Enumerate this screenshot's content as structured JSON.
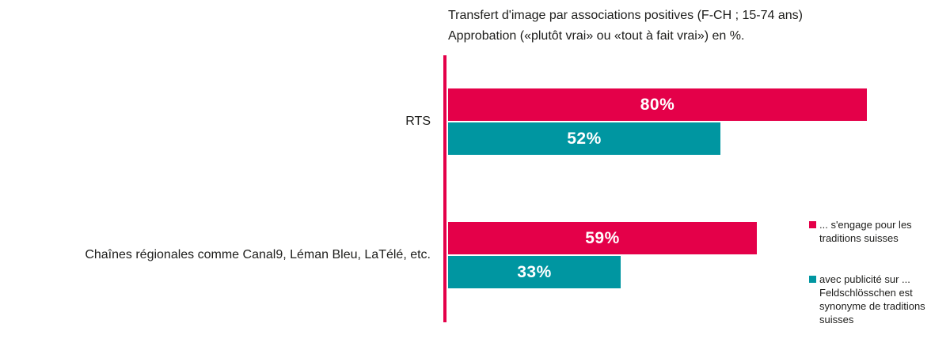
{
  "title": {
    "line1": "Transfert d'image par associations positives (F-CH ; 15-74 ans)",
    "line2": "Approbation («plutôt vrai» ou «tout à fait vrai») en %."
  },
  "chart_data": {
    "type": "bar",
    "orientation": "horizontal",
    "title": "Transfert d'image par associations positives (F-CH ; 15-74 ans) — Approbation («plutôt vrai» ou «tout à fait vrai») en %.",
    "categories": [
      "RTS",
      "Chaînes régionales comme Canal9, Léman Bleu, LaTélé, etc."
    ],
    "series": [
      {
        "name": "... s'engage pour les traditions suisses",
        "color": "#e40049",
        "values": [
          80,
          59
        ]
      },
      {
        "name": "avec publicité sur ... Feldschlösschen est synonyme de traditions suisses",
        "color": "#0096a1",
        "values": [
          52,
          33
        ]
      }
    ],
    "value_suffix": "%",
    "xlim": [
      0,
      100
    ],
    "axis_color": "#e40049",
    "grid": false,
    "legend_position": "right",
    "value_labels_inside_bars": true
  }
}
